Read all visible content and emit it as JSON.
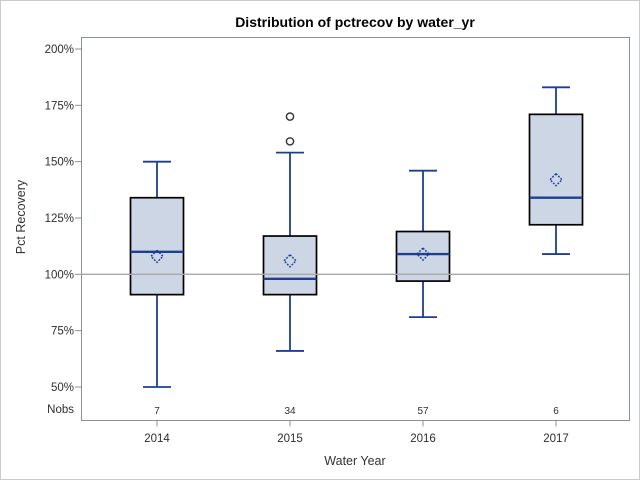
{
  "window": {
    "background": "#ffffff",
    "frame_color": "#c9ccce"
  },
  "chart_data": {
    "type": "box",
    "title": "Distribution of pctrecov by water_yr",
    "xlabel": "Water Year",
    "ylabel": "Pct Recovery",
    "categories": [
      "2014",
      "2015",
      "2016",
      "2017"
    ],
    "nobs_label": "Nobs",
    "nobs": [
      "7",
      "34",
      "57",
      "6"
    ],
    "y_ticks": [
      200,
      175,
      150,
      125,
      100,
      75,
      50
    ],
    "y_tick_suffix": "%",
    "refline": 100,
    "grid": false,
    "legend_position": "none",
    "series": [
      {
        "category": "2014",
        "n": 7,
        "low": 50,
        "q1": 91,
        "median": 110,
        "mean": 108,
        "q3": 134,
        "high": 150,
        "outliers": []
      },
      {
        "category": "2015",
        "n": 34,
        "low": 66,
        "q1": 91,
        "median": 98,
        "mean": 106,
        "q3": 117,
        "high": 154,
        "outliers": [
          159,
          170
        ]
      },
      {
        "category": "2016",
        "n": 57,
        "low": 81,
        "q1": 97,
        "median": 109,
        "mean": 109,
        "q3": 119,
        "high": 146,
        "outliers": []
      },
      {
        "category": "2017",
        "n": 6,
        "low": 109,
        "q1": 122,
        "median": 134,
        "mean": 142,
        "q3": 171,
        "high": 183,
        "outliers": []
      }
    ],
    "colors": {
      "box_fill": "#cdd6e5",
      "box_stroke": "#000000",
      "whisker": "#1c3f94",
      "median": "#1c3f94",
      "mean_marker": "#1c3f94",
      "outlier": "#333333",
      "refline": "#a8a8a8",
      "axis": "#8a9196",
      "tick_label": "#2e2e2e"
    }
  }
}
